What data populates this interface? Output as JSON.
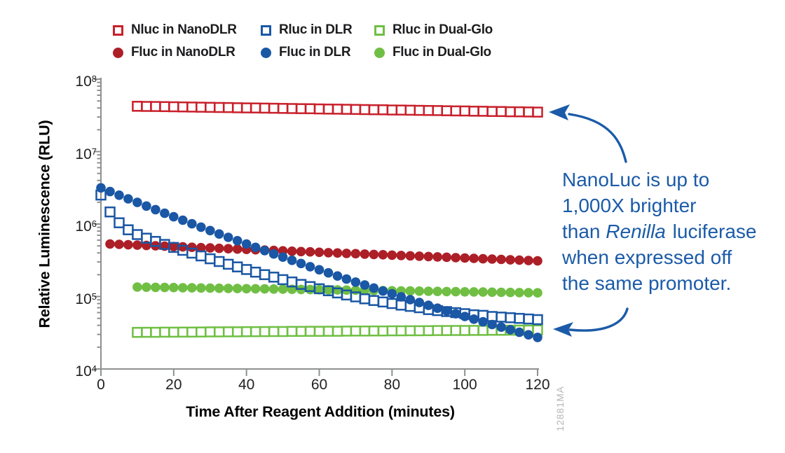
{
  "figure": {
    "code": "12881MA",
    "annotation": {
      "lines": [
        "NanoLuc is up to",
        "1,000X brighter",
        "than Renilla luciferase",
        "when expressed off",
        "the same promoter."
      ],
      "italic_word": "Renilla",
      "color": "#1b5ba8"
    }
  },
  "chart_data": {
    "type": "scatter",
    "title": "",
    "xlabel": "Time After Reagent Addition (minutes)",
    "ylabel": "Relative Luminescence (RLU)",
    "x_ticks": [
      0,
      20,
      40,
      60,
      80,
      100,
      120
    ],
    "xlim": [
      0,
      120
    ],
    "y_scale": "log",
    "y_tick_exponents": [
      4,
      5,
      6,
      7,
      8
    ],
    "ylim": [
      10000.0,
      100000000.0
    ],
    "grid": false,
    "legend_position": "top",
    "axis_color": "#8e9091",
    "draw_order": [
      "rluc-dualglo",
      "fluc-dualglo",
      "fluc-nanodlr",
      "nluc-nanodlr",
      "rluc-dlr",
      "fluc-dlr"
    ],
    "legend_rows": [
      [
        "nluc-nanodlr",
        "rluc-dlr",
        "rluc-dualglo"
      ],
      [
        "fluc-nanodlr",
        "fluc-dlr",
        "fluc-dualglo"
      ]
    ],
    "series": [
      {
        "id": "nluc-nanodlr",
        "name": "Nluc in NanoDLR",
        "marker": "open-square",
        "color": "#c9202b",
        "t_start": 10,
        "t_step": 2.5,
        "values": [
          42200000.0,
          42000000.0,
          41900000.0,
          41700000.0,
          41500000.0,
          41300000.0,
          41200000.0,
          41000000.0,
          40800000.0,
          40600000.0,
          40500000.0,
          40300000.0,
          40100000.0,
          40000000.0,
          39800000.0,
          39600000.0,
          39500000.0,
          39300000.0,
          39100000.0,
          39000000.0,
          38800000.0,
          38600000.0,
          38500000.0,
          38300000.0,
          38200000.0,
          38000000.0,
          37800000.0,
          37700000.0,
          37500000.0,
          37400000.0,
          37200000.0,
          37100000.0,
          36900000.0,
          36800000.0,
          36600000.0,
          36400000.0,
          36300000.0,
          36100000.0,
          36000000.0,
          35800000.0,
          35700000.0,
          35500000.0,
          35400000.0,
          35200000.0,
          35100000.0
        ]
      },
      {
        "id": "fluc-nanodlr",
        "name": "Fluc in NanoDLR",
        "marker": "filled-circle",
        "color": "#ad1f27",
        "t_start": 2.5,
        "t_step": 2.5,
        "values": [
          530000.0,
          524000.0,
          518000.0,
          512000.0,
          506000.0,
          501000.0,
          495000.0,
          489000.0,
          484000.0,
          478000.0,
          473000.0,
          468000.0,
          462000.0,
          457000.0,
          452000.0,
          447000.0,
          442000.0,
          437000.0,
          432000.0,
          427000.0,
          422000.0,
          417000.0,
          413000.0,
          408000.0,
          403000.0,
          399000.0,
          394000.0,
          390000.0,
          385000.0,
          381000.0,
          377000.0,
          372000.0,
          368000.0,
          364000.0,
          360000.0,
          356000.0,
          352000.0,
          348000.0,
          344000.0,
          340000.0,
          336000.0,
          332000.0,
          329000.0,
          325000.0,
          321000.0,
          318000.0,
          314000.0,
          310000.0
        ]
      },
      {
        "id": "rluc-dlr",
        "name": "Rluc in DLR",
        "marker": "open-square",
        "color": "#1a57a5",
        "t_start": 0,
        "t_step": 2.5,
        "values": [
          2510000.0,
          1470000.0,
          1040000.0,
          834000.0,
          717000.0,
          638000.0,
          576000.0,
          523000.0,
          476000.0,
          434000.0,
          397000.0,
          363000.0,
          332000.0,
          304000.0,
          279000.0,
          256000.0,
          236000.0,
          217000.0,
          200000.0,
          185000.0,
          171000.0,
          159000.0,
          147000.0,
          137000.0,
          128000.0,
          120000.0,
          112000.0,
          105000.0,
          99000.0,
          93000.0,
          88000.0,
          84000.0,
          80000.0,
          76000.0,
          73000.0,
          70000.0,
          66000.0,
          64000.0,
          62000.0,
          60000.0,
          58000.0,
          56000.0,
          55000.0,
          53000.0,
          52000.0,
          51000.0,
          50000.0,
          49000.0,
          48000.0
        ]
      },
      {
        "id": "fluc-dlr",
        "name": "Fluc in DLR",
        "marker": "filled-circle",
        "color": "#1a57a5",
        "t_start": 0,
        "t_step": 2.5,
        "values": [
          3160000.0,
          2810000.0,
          2500000.0,
          2230000.0,
          1990000.0,
          1770000.0,
          1580000.0,
          1410000.0,
          1260000.0,
          1130000.0,
          1010000.0,
          906000.0,
          813000.0,
          729000.0,
          655000.0,
          589000.0,
          530000.0,
          477000.0,
          430000.0,
          387000.0,
          350000.0,
          316000.0,
          286000.0,
          258000.0,
          234000.0,
          212000.0,
          192000.0,
          174000.0,
          158000.0,
          144000.0,
          131000.0,
          119000.0,
          109000.0,
          99100.0,
          90400.0,
          82600.0,
          75500.0,
          69000.0,
          63200.0,
          57900.0,
          53100.0,
          48700.0,
          44800.0,
          41100.0,
          37800.0,
          34800.0,
          32100.0,
          29600.0,
          27300.0
        ]
      },
      {
        "id": "rluc-dualglo",
        "name": "Rluc in Dual-Glo",
        "marker": "open-square",
        "color": "#70bf44",
        "t_start": 10,
        "t_step": 2.5,
        "values": [
          32000.0,
          32100.0,
          32100.0,
          32200.0,
          32200.0,
          32300.0,
          32300.0,
          32400.0,
          32500.0,
          32500.0,
          32600.0,
          32600.0,
          32700.0,
          32700.0,
          32800.0,
          32900.0,
          32900.0,
          33000.0,
          33000.0,
          33100.0,
          33100.0,
          33200.0,
          33200.0,
          33300.0,
          33400.0,
          33400.0,
          33500.0,
          33500.0,
          33600.0,
          33600.0,
          33700.0,
          33700.0,
          33800.0,
          33900.0,
          33900.0,
          34000.0,
          34000.0,
          34100.0,
          34100.0,
          34200.0,
          34200.0,
          34300.0,
          34400.0,
          34400.0,
          34500.0
        ]
      },
      {
        "id": "fluc-dualglo",
        "name": "Fluc in Dual-Glo",
        "marker": "filled-circle",
        "color": "#70bf44",
        "t_start": 10,
        "t_step": 2.5,
        "values": [
          135000.0,
          134400.0,
          133900.0,
          133300.0,
          132800.0,
          132200.0,
          131700.0,
          131100.0,
          130600.0,
          130000.0,
          129500.0,
          129000.0,
          128400.0,
          127900.0,
          127400.0,
          126800.0,
          126300.0,
          125800.0,
          125300.0,
          124700.0,
          124200.0,
          123700.0,
          123200.0,
          122700.0,
          122200.0,
          121700.0,
          121100.0,
          120600.0,
          120100.0,
          119600.0,
          119100.0,
          118600.0,
          118100.0,
          117700.0,
          117200.0,
          116700.0,
          116200.0,
          115700.0,
          115200.0,
          114700.0,
          114300.0,
          113800.0,
          113300.0,
          112800.0,
          112400.0
        ]
      }
    ]
  }
}
